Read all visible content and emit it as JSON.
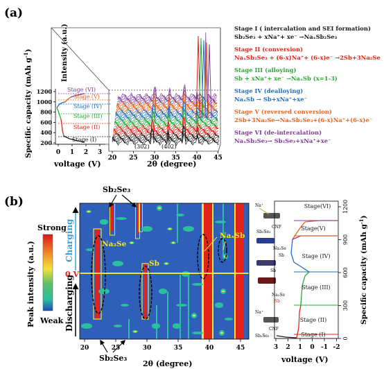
{
  "panel_a": {
    "label": "(a)",
    "y_axis_label": "Specific capacity (mAh g",
    "y_axis_sup": "-1",
    "y_axis_close": ")",
    "y_ticks": [
      "1200",
      "1000",
      "800",
      "600",
      "400",
      "200"
    ],
    "x_axis_label": "voltage (V)",
    "x_ticks": [
      "0",
      "1",
      "2",
      "3"
    ],
    "stage_labels": [
      "Stage (VI)",
      "Stage (V)",
      "Stage (IV)",
      "Stage (III)",
      "Stage (II)",
      "Stage (I)"
    ],
    "intensity_label": "Intensity (a.u.)",
    "two_theta_label": "2θ (degree)",
    "two_theta_ticks": [
      "20",
      "25",
      "30",
      "35",
      "40",
      "45"
    ],
    "peak_labels": [
      "(302)",
      "(402)"
    ],
    "legend": [
      {
        "title": "Stage I ( intercalation and SEI formation)",
        "eq": "Sb₂Se₃ + xNa⁺+ xe⁻ →NaₓSb₂Se₃",
        "color": "#1a1a1a"
      },
      {
        "title": "Stage II (conversion)",
        "eq": "NaₓSb₂Se₃ + (6-x)Na⁺+ (6-x)e⁻ →2Sb+3Na₂Se",
        "color": "#e2231a"
      },
      {
        "title": "Stage III (alloying)",
        "eq": "Sb + xNa⁺+ xe⁻ →NaₓSb (x=1-3)",
        "color": "#2aa838"
      },
      {
        "title": "Stage IV (dealloying)",
        "eq": "NaₓSb → Sb+xNa⁺+xe⁻",
        "color": "#1f6fc2"
      },
      {
        "title": "Stage V (reversed conversion)",
        "eq": "2Sb+3Na₂Se→NaₓSb₂Se₃+(6-x)Na⁺+(6-x)e⁻",
        "color": "#e8631c"
      },
      {
        "title": "Stage VI (de-intercalation)",
        "eq": "NaₓSb₂Se₃→ Sb₂Se₃+xNa⁺+xe⁻",
        "color": "#7d3c98"
      }
    ],
    "colors": {
      "black": "#1a1a1a",
      "red": "#e2231a",
      "green": "#2aa838",
      "blue": "#1f6fc2",
      "orange": "#e8631c",
      "purple": "#7d3c98"
    }
  },
  "panel_b": {
    "label": "(b)",
    "peak_intensity_label": "Peak intensity (a.u.)",
    "strong_label": "Strong",
    "weak_label": "Weak",
    "charging_label": "Charging",
    "discharging_label": "Discharging",
    "zero_v_label": "0 V",
    "x_ticks": [
      "20",
      "25",
      "30",
      "35",
      "40",
      "45"
    ],
    "x_label": "2θ (degree)",
    "phase_labels": {
      "top": "Sb₂Se₃",
      "bottom": "Sb₂Se₃",
      "na2se": "Na₂Se",
      "sb": "Sb",
      "naxsb": "NaₓSb"
    },
    "right_x_ticks": [
      "3",
      "2",
      "1",
      "0",
      "-1",
      "-2"
    ],
    "right_x_label": "voltage (V)",
    "right_y_label": "Specific capacity (mAh g",
    "right_y_sup": "-1",
    "right_y_close": ")",
    "right_y_ticks": [
      "1200",
      "900",
      "600",
      "300",
      "0"
    ],
    "right_stage_labels": [
      "Stage(VI)",
      "Stage(V)",
      "Stage (IV)",
      "Stage (III)",
      "Stage (II)",
      "Stage (I)"
    ],
    "inset_labels": [
      "Na⁺",
      "CNF",
      "Sb₂Se₃",
      "Na₂Se",
      "Sb",
      "Sb",
      "Na₂Se",
      "Sb",
      "Na⁺",
      "CNF",
      "Sb₂Se₃"
    ],
    "map_colors": {
      "background": "#2f5fb8",
      "strong": "#e2231a",
      "mid": "#f6e03a",
      "low": "#2bbfa0"
    }
  }
}
